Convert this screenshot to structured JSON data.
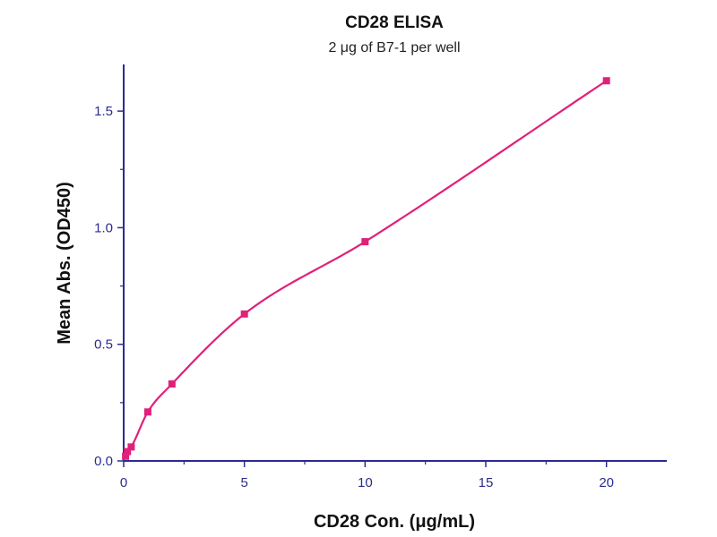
{
  "chart_data": {
    "type": "line",
    "title": "CD28 ELISA",
    "subtitle": "2 μg of B7-1 per well",
    "xlabel": "CD28 Con. (μg/mL)",
    "ylabel": "Mean Abs. (OD450)",
    "xlim": [
      0,
      22.5
    ],
    "ylim": [
      0,
      1.7
    ],
    "xticks": [
      0,
      5,
      10,
      15,
      20
    ],
    "xtick_labels": [
      "0",
      "5",
      "10",
      "15",
      "20"
    ],
    "yticks": [
      0.0,
      0.5,
      1.0,
      1.5
    ],
    "ytick_labels": [
      "0.0",
      "0.5",
      "1.0",
      "1.5"
    ],
    "grid": false,
    "legend": "none",
    "colors": {
      "series": "#e0207a",
      "axis": "#2b2b8f"
    },
    "series": [
      {
        "x": [
          0.078,
          0.156,
          0.313,
          1.0,
          2.0,
          5.0,
          10.0,
          20.0
        ],
        "y": [
          0.02,
          0.04,
          0.06,
          0.21,
          0.33,
          0.63,
          0.94,
          1.63
        ]
      }
    ]
  }
}
